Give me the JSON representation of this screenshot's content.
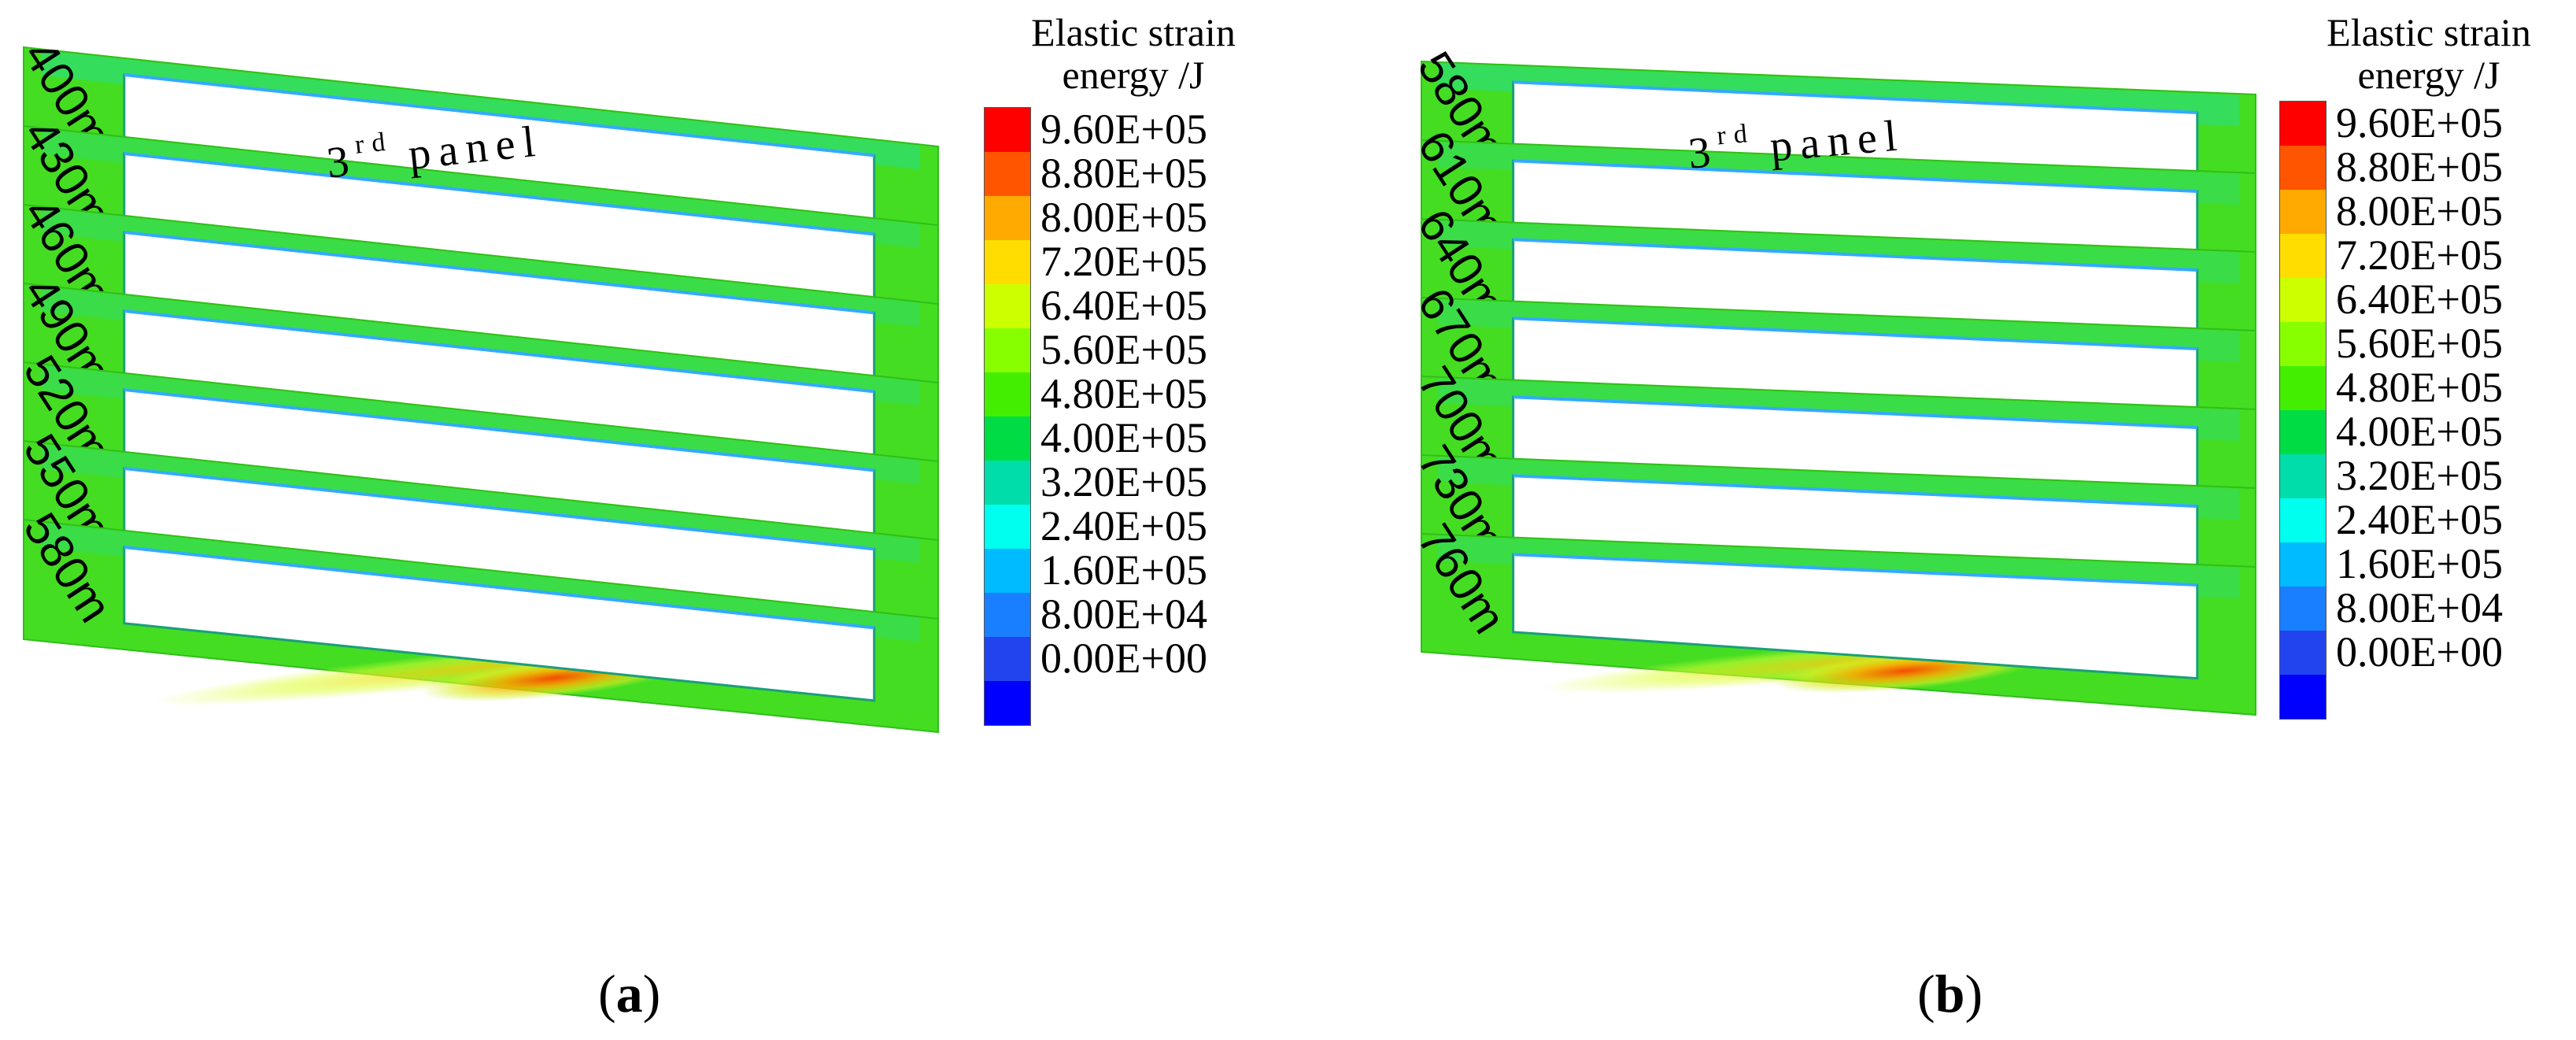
{
  "legend": {
    "title_line1": "Elastic strain",
    "title_line2": "energy /J",
    "colors": [
      "#ff0000",
      "#ff5500",
      "#ffaa00",
      "#ffdd00",
      "#ccff00",
      "#88ff00",
      "#44ee00",
      "#00dd44",
      "#00ddaa",
      "#00ffee",
      "#00bbff",
      "#1a7fff",
      "#2244ee",
      "#0000ff"
    ],
    "ticks": [
      "9.60E+05",
      "8.80E+05",
      "8.00E+05",
      "7.20E+05",
      "6.40E+05",
      "5.60E+05",
      "4.80E+05",
      "4.00E+05",
      "3.20E+05",
      "2.40E+05",
      "1.60E+05",
      "8.00E+04",
      "0.00E+00"
    ]
  },
  "panels": [
    {
      "caption_open": "(",
      "caption_letter": "a",
      "caption_close": ")",
      "panel_word": "panel",
      "panel_ordinal_num": "3",
      "panel_ordinal_sup": "rd",
      "depths": [
        "400m",
        "430m",
        "460m",
        "490m",
        "520m",
        "550m",
        "580m"
      ]
    },
    {
      "caption_open": "(",
      "caption_letter": "b",
      "caption_close": ")",
      "panel_word": "panel",
      "panel_ordinal_num": "3",
      "panel_ordinal_sup": "rd",
      "depths": [
        "580m",
        "610m",
        "640m",
        "670m",
        "700m",
        "730m",
        "760m"
      ]
    }
  ]
}
